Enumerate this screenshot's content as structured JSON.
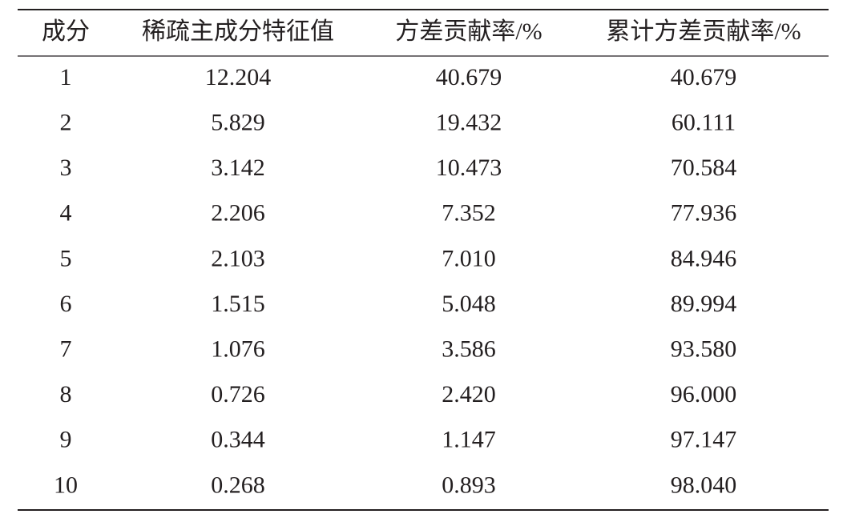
{
  "table": {
    "header": [
      "成分",
      "稀疏主成分特征值",
      "方差贡献率/%",
      "累计方差贡献率/%"
    ],
    "rows": [
      [
        "1",
        "12.204",
        "40.679",
        "40.679"
      ],
      [
        "2",
        "5.829",
        "19.432",
        "60.111"
      ],
      [
        "3",
        "3.142",
        "10.473",
        "70.584"
      ],
      [
        "4",
        "2.206",
        "7.352",
        "77.936"
      ],
      [
        "5",
        "2.103",
        "7.010",
        "84.946"
      ],
      [
        "6",
        "1.515",
        "5.048",
        "89.994"
      ],
      [
        "7",
        "1.076",
        "3.586",
        "93.580"
      ],
      [
        "8",
        "0.726",
        "2.420",
        "96.000"
      ],
      [
        "9",
        "0.344",
        "1.147",
        "97.147"
      ],
      [
        "10",
        "0.268",
        "0.893",
        "98.040"
      ]
    ]
  }
}
